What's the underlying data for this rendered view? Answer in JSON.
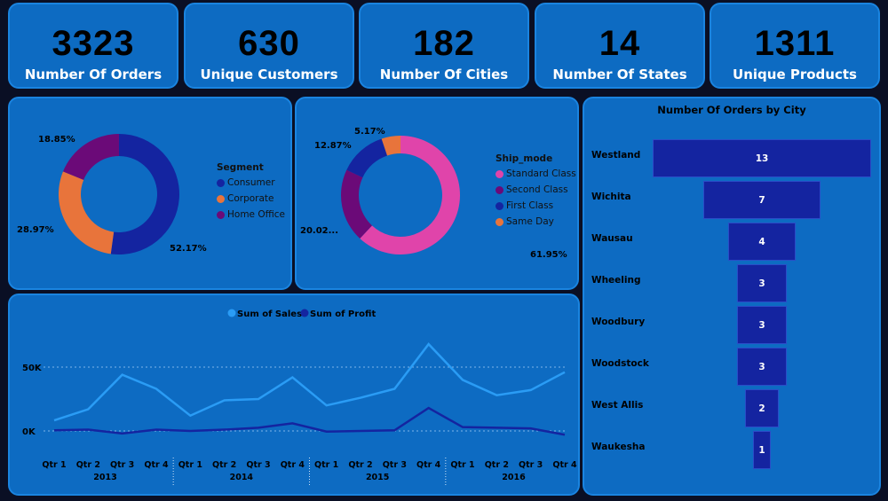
{
  "kpis": [
    {
      "value": "3323",
      "label": "Number Of Orders"
    },
    {
      "value": "630",
      "label": "Unique Customers"
    },
    {
      "value": "182",
      "label": "Number Of Cities"
    },
    {
      "value": "14",
      "label": "Number Of States"
    },
    {
      "value": "1311",
      "label": "Unique Products"
    }
  ],
  "segment": {
    "title": "Segment",
    "items": [
      {
        "name": "Consumer",
        "pct": 52.17,
        "label": "52.17%",
        "color": "#1424a0"
      },
      {
        "name": "Corporate",
        "pct": 28.97,
        "label": "28.97%",
        "color": "#e8743b"
      },
      {
        "name": "Home Office",
        "pct": 18.85,
        "label": "18.85%",
        "color": "#6b0a78"
      }
    ]
  },
  "ship": {
    "title": "Ship_mode",
    "items": [
      {
        "name": "Standard Class",
        "pct": 61.95,
        "label": "61.95%",
        "color": "#e044aa"
      },
      {
        "name": "Second Class",
        "pct": 20.02,
        "label": "20.02...",
        "color": "#6b0a78"
      },
      {
        "name": "First Class",
        "pct": 12.87,
        "label": "12.87%",
        "color": "#1424a0"
      },
      {
        "name": "Same Day",
        "pct": 5.17,
        "label": "5.17%",
        "color": "#e8743b"
      }
    ]
  },
  "line": {
    "legend": [
      "Sum of Sales",
      "Sum of Profit"
    ],
    "colors": [
      "#2a9cf5",
      "#1424a0"
    ],
    "y_ticks": [
      "50K",
      "0K"
    ],
    "quarters": [
      "Qtr 1",
      "Qtr 2",
      "Qtr 3",
      "Qtr 4"
    ],
    "years": [
      "2013",
      "2014",
      "2015",
      "2016"
    ],
    "sales": [
      8300,
      17000,
      44000,
      33000,
      12000,
      24000,
      25000,
      42000,
      20000,
      26000,
      33000,
      68000,
      40000,
      28000,
      32000,
      46000
    ],
    "profit": [
      500,
      1000,
      -2000,
      1000,
      0,
      1000,
      2500,
      6000,
      -500,
      0,
      500,
      18000,
      3000,
      2500,
      2000,
      -3000
    ]
  },
  "funnel": {
    "title": "Number Of Orders  by City",
    "rows": [
      {
        "city": "Westland",
        "value": 13
      },
      {
        "city": "Wichita",
        "value": 7
      },
      {
        "city": "Wausau",
        "value": 4
      },
      {
        "city": "Wheeling",
        "value": 3
      },
      {
        "city": "Woodbury",
        "value": 3
      },
      {
        "city": "Woodstock",
        "value": 3
      },
      {
        "city": "West Allis",
        "value": 2
      },
      {
        "city": "Waukesha",
        "value": 1
      }
    ]
  }
}
